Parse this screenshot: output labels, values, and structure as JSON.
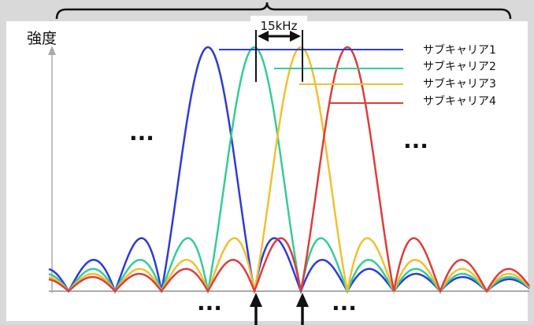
{
  "y_axis_label": "強度",
  "spacing_label": "15kHz",
  "ellipsis": "...",
  "chart_data": {
    "type": "line",
    "title": "",
    "xlabel": "",
    "ylabel": "強度",
    "grid": false,
    "legend_position": "top-right",
    "subcarrier_spacing": "15kHz",
    "series": [
      {
        "name": "サブキャリア1",
        "color": "#2e3bd6",
        "peak_index": 0
      },
      {
        "name": "サブキャリア2",
        "color": "#33cc99",
        "peak_index": 1
      },
      {
        "name": "サブキャリア3",
        "color": "#f0c030",
        "peak_index": 2
      },
      {
        "name": "サブキャリア4",
        "color": "#e03c3c",
        "peak_index": 3
      }
    ]
  }
}
